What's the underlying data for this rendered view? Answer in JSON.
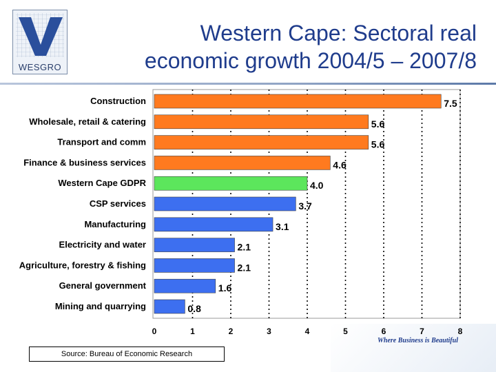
{
  "logo": {
    "text": "WESGRO"
  },
  "title": {
    "line1": "Western Cape: Sectoral real",
    "line2": "economic growth 2004/5 – 2007/8"
  },
  "tagline": "Where Business is Beautiful",
  "source": "Source: Bureau of Economic Research",
  "colors": {
    "orange": "#ff7a1f",
    "green": "#5ce65c",
    "blue": "#3d6ff0",
    "title": "#1f3c8c"
  },
  "chart_data": {
    "type": "bar",
    "orientation": "horizontal",
    "title": "",
    "xlabel": "",
    "ylabel": "",
    "xlim": [
      0,
      8
    ],
    "ticks": [
      0,
      1,
      2,
      3,
      4,
      5,
      6,
      7,
      8
    ],
    "grid": "dotted vertical",
    "categories": [
      "Construction",
      "Wholesale, retail & catering",
      "Transport and comm",
      "Finance & business services",
      "Western Cape GDPR",
      "CSP services",
      "Manufacturing",
      "Electricity and water",
      "Agriculture, forestry & fishing",
      "General government",
      "Mining and quarrying"
    ],
    "values": [
      7.5,
      5.6,
      5.6,
      4.6,
      4.0,
      3.7,
      3.1,
      2.1,
      2.1,
      1.6,
      0.8
    ],
    "labels": [
      "7.5",
      "5.6",
      "5.6",
      "4.6",
      "4.0",
      "3.7",
      "3.1",
      "2.1",
      "2.1",
      "1.6",
      "0.8"
    ],
    "bar_colors": [
      "orange",
      "orange",
      "orange",
      "orange",
      "green",
      "blue",
      "blue",
      "blue",
      "blue",
      "blue",
      "blue"
    ]
  }
}
